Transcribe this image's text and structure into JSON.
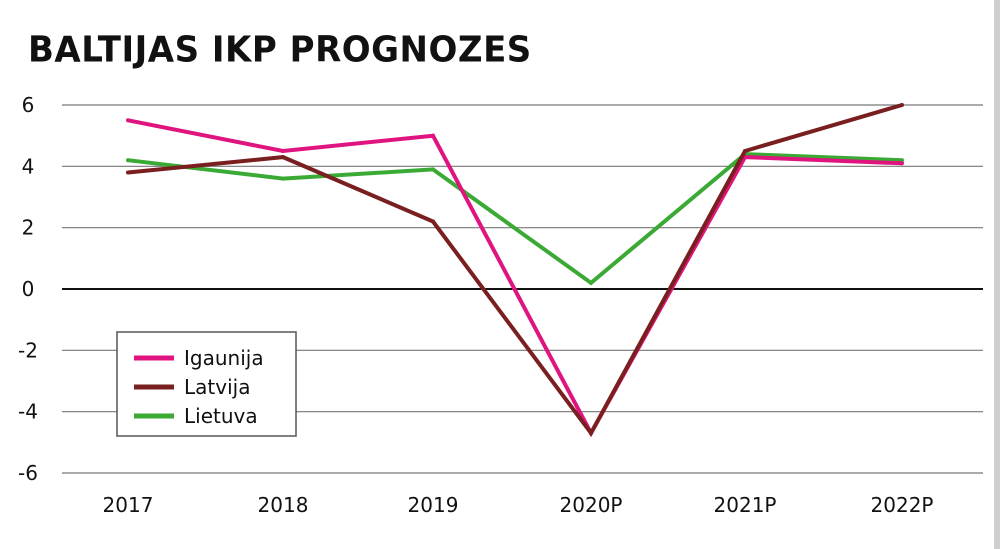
{
  "title": "BALTIJAS IKP PROGNOZES",
  "colors": {
    "Igaunija": "#e0147e",
    "Latvija": "#7a1f1f",
    "Lietuva": "#3aaa35"
  },
  "chart_data": {
    "type": "line",
    "title": "BALTIJAS IKP PROGNOZES",
    "xlabel": "",
    "ylabel": "",
    "categories": [
      "2017",
      "2018",
      "2019",
      "2020P",
      "2021P",
      "2022P"
    ],
    "yticks": [
      "6",
      "4",
      "2",
      "0",
      "-2",
      "-4",
      "-6"
    ],
    "ylim": [
      -6,
      6
    ],
    "grid": true,
    "legend": "bottom-left",
    "series": [
      {
        "name": "Igaunija",
        "values": [
          5.5,
          4.5,
          5.0,
          -4.7,
          4.3,
          4.1
        ]
      },
      {
        "name": "Latvija",
        "values": [
          3.8,
          4.3,
          2.2,
          -4.7,
          4.5,
          6.0
        ]
      },
      {
        "name": "Lietuva",
        "values": [
          4.2,
          3.6,
          3.9,
          0.2,
          4.4,
          4.2
        ]
      }
    ]
  }
}
